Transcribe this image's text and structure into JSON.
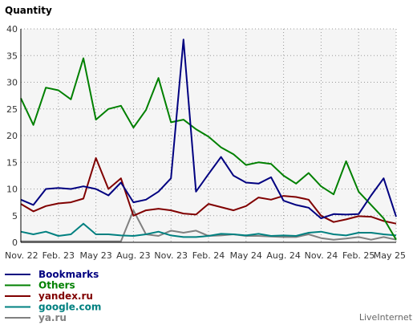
{
  "chart_data": {
    "type": "line",
    "title": "Quantity",
    "xlabel": "",
    "ylabel": "",
    "ylim": [
      0,
      40
    ],
    "yticks": [
      0,
      5,
      10,
      15,
      20,
      25,
      30,
      35,
      40
    ],
    "xtick_labels": [
      "Nov. 22",
      "Feb. 23",
      "May 23",
      "Aug. 23",
      "Nov. 23",
      "Feb. 24",
      "May 24",
      "Aug. 24",
      "Nov. 24",
      "Feb. 25",
      "May 25"
    ],
    "x_points_per_tick": 3,
    "grid": true,
    "legend_position": "bottom-left",
    "series": [
      {
        "name": "Bookmarks",
        "color": "#000080",
        "values": [
          8,
          7,
          10,
          10.2,
          10,
          10.5,
          10,
          8.8,
          11.2,
          7.5,
          8,
          9.5,
          12,
          38,
          9.5,
          12.8,
          16,
          12.5,
          11.2,
          11,
          12.2,
          7.8,
          7,
          6.5,
          4.5,
          5.3,
          5.2,
          5.3,
          8.8,
          12,
          4.8
        ]
      },
      {
        "name": "Others",
        "color": "#008000",
        "values": [
          27,
          22,
          29,
          28.5,
          26.8,
          34.5,
          23,
          25,
          25.6,
          21.5,
          24.8,
          30.8,
          22.5,
          23,
          21.2,
          19.8,
          17.8,
          16.5,
          14.5,
          15,
          14.7,
          12.5,
          11,
          13,
          10.5,
          9,
          15.2,
          9.5,
          7,
          4.5,
          0.5
        ]
      },
      {
        "name": "yandex.ru",
        "color": "#800000",
        "values": [
          7.2,
          5.8,
          6.8,
          7.3,
          7.5,
          8.2,
          15.8,
          10,
          12,
          5,
          6,
          6.3,
          6,
          5.4,
          5.2,
          7.2,
          6.6,
          6,
          6.8,
          8.4,
          8,
          8.7,
          8.5,
          8,
          5,
          3.8,
          4.3,
          4.9,
          4.8,
          4,
          3.5
        ]
      },
      {
        "name": "google.com",
        "color": "#008080",
        "values": [
          2,
          1.5,
          2,
          1.2,
          1.5,
          3.5,
          1.5,
          1.5,
          1.3,
          1.2,
          1.5,
          2,
          1.3,
          1,
          1,
          1.2,
          1.6,
          1.5,
          1.3,
          1.6,
          1.2,
          1.3,
          1.2,
          1.8,
          2,
          1.5,
          1.3,
          1.8,
          1.8,
          1.5,
          1.3
        ]
      },
      {
        "name": "ya.ru",
        "color": "#808080",
        "values": [
          0.2,
          0.2,
          0.2,
          0.2,
          0.2,
          0.2,
          0.2,
          0.2,
          0.2,
          6,
          1.5,
          1.2,
          2.2,
          1.8,
          2.2,
          1.2,
          1.3,
          1.5,
          1.2,
          1.2,
          1.1,
          1.0,
          1.0,
          1.5,
          0.8,
          0.5,
          0.7,
          1.0,
          0.5,
          1.0,
          0.5
        ]
      }
    ]
  },
  "brand": "LiveInternet"
}
